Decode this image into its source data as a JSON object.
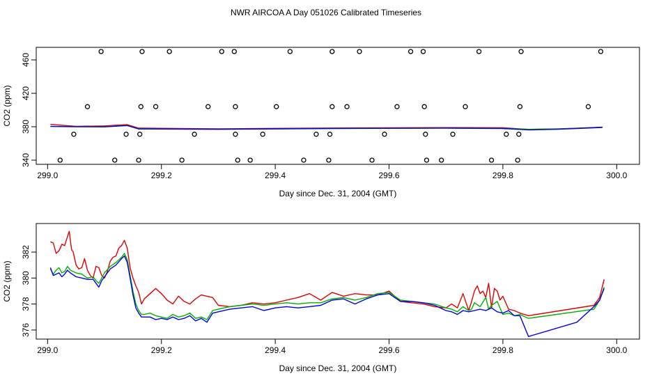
{
  "title": "NWR AIRCOA A  Day 051026  Calibrated Timeseries",
  "colors": {
    "red": "#e00000",
    "green": "#00b000",
    "blue": "#0000e0",
    "marker": "#000000"
  },
  "chart_data": [
    {
      "type": "scatter",
      "xlabel": "Day since Dec. 31, 2004 (GMT)",
      "ylabel": "CO2 (ppm)",
      "xlim": [
        298.98,
        300.04
      ],
      "ylim": [
        335,
        475
      ],
      "xticks": [
        299.0,
        299.2,
        299.4,
        299.6,
        299.8,
        300.0
      ],
      "xtick_labels": [
        "299.0",
        "299.2",
        "299.4",
        "299.6",
        "299.8",
        "300.0"
      ],
      "yticks": [
        340,
        380,
        420,
        460
      ],
      "ytick_labels": [
        "340",
        "380",
        "420",
        "460"
      ],
      "markers": [
        {
          "x": 299.094,
          "y": 470
        },
        {
          "x": 299.166,
          "y": 470
        },
        {
          "x": 299.214,
          "y": 470
        },
        {
          "x": 299.306,
          "y": 470
        },
        {
          "x": 299.328,
          "y": 470
        },
        {
          "x": 299.426,
          "y": 470
        },
        {
          "x": 299.5,
          "y": 470
        },
        {
          "x": 299.548,
          "y": 470
        },
        {
          "x": 299.638,
          "y": 470
        },
        {
          "x": 299.66,
          "y": 470
        },
        {
          "x": 299.758,
          "y": 470
        },
        {
          "x": 299.832,
          "y": 470
        },
        {
          "x": 299.972,
          "y": 470
        },
        {
          "x": 299.07,
          "y": 404
        },
        {
          "x": 299.164,
          "y": 404
        },
        {
          "x": 299.19,
          "y": 404
        },
        {
          "x": 299.282,
          "y": 404
        },
        {
          "x": 299.33,
          "y": 404
        },
        {
          "x": 299.402,
          "y": 404
        },
        {
          "x": 299.5,
          "y": 404
        },
        {
          "x": 299.526,
          "y": 404
        },
        {
          "x": 299.614,
          "y": 404
        },
        {
          "x": 299.662,
          "y": 404
        },
        {
          "x": 299.734,
          "y": 404
        },
        {
          "x": 299.83,
          "y": 404
        },
        {
          "x": 299.95,
          "y": 404
        },
        {
          "x": 299.046,
          "y": 371
        },
        {
          "x": 299.138,
          "y": 371
        },
        {
          "x": 299.162,
          "y": 371
        },
        {
          "x": 299.258,
          "y": 371
        },
        {
          "x": 299.33,
          "y": 371
        },
        {
          "x": 299.378,
          "y": 371
        },
        {
          "x": 299.472,
          "y": 371
        },
        {
          "x": 299.496,
          "y": 371
        },
        {
          "x": 299.592,
          "y": 371
        },
        {
          "x": 299.664,
          "y": 371
        },
        {
          "x": 299.712,
          "y": 371
        },
        {
          "x": 299.806,
          "y": 371
        },
        {
          "x": 299.828,
          "y": 371
        },
        {
          "x": 299.022,
          "y": 340
        },
        {
          "x": 299.118,
          "y": 340
        },
        {
          "x": 299.16,
          "y": 340
        },
        {
          "x": 299.236,
          "y": 340
        },
        {
          "x": 299.334,
          "y": 340
        },
        {
          "x": 299.356,
          "y": 340
        },
        {
          "x": 299.45,
          "y": 340
        },
        {
          "x": 299.494,
          "y": 340
        },
        {
          "x": 299.57,
          "y": 340
        },
        {
          "x": 299.666,
          "y": 340
        },
        {
          "x": 299.692,
          "y": 340
        },
        {
          "x": 299.78,
          "y": 340
        },
        {
          "x": 299.826,
          "y": 340
        }
      ],
      "series": [
        {
          "name": "red",
          "color": "#e00000",
          "x": [
            299.005,
            299.05,
            299.1,
            299.14,
            299.16,
            299.3,
            299.5,
            299.7,
            299.8,
            299.845,
            299.9,
            299.975
          ],
          "y": [
            382.8,
            380.5,
            381.0,
            382.5,
            378.3,
            377.5,
            378.5,
            379.0,
            378.8,
            376.8,
            377.5,
            379.5
          ]
        },
        {
          "name": "green",
          "color": "#00b000",
          "x": [
            299.005,
            299.05,
            299.1,
            299.14,
            299.16,
            299.3,
            299.5,
            299.7,
            299.8,
            299.845,
            299.9,
            299.975
          ],
          "y": [
            380.5,
            380.2,
            380.0,
            381.5,
            377.5,
            377.0,
            378.0,
            378.5,
            378.2,
            376.9,
            377.4,
            379.3
          ]
        },
        {
          "name": "blue",
          "color": "#0000e0",
          "x": [
            299.005,
            299.05,
            299.1,
            299.14,
            299.16,
            299.3,
            299.5,
            299.7,
            299.8,
            299.845,
            299.9,
            299.975
          ],
          "y": [
            380.3,
            380.0,
            379.8,
            381.4,
            377.3,
            376.9,
            377.8,
            378.3,
            377.9,
            376.2,
            377.0,
            379.2
          ]
        }
      ]
    },
    {
      "type": "line",
      "xlabel": "Day since Dec. 31, 2004 (GMT)",
      "ylabel": "CO2 (ppm)",
      "xlim": [
        298.98,
        300.04
      ],
      "ylim": [
        375.3,
        384.2
      ],
      "xticks": [
        299.0,
        299.2,
        299.4,
        299.6,
        299.8,
        300.0
      ],
      "xtick_labels": [
        "299.0",
        "299.2",
        "299.4",
        "299.6",
        "299.8",
        "300.0"
      ],
      "yticks": [
        376,
        378,
        380,
        382
      ],
      "ytick_labels": [
        "376",
        "378",
        "380",
        "382"
      ],
      "series": [
        {
          "name": "red",
          "color": "#e00000",
          "x": [
            299.005,
            299.01,
            299.015,
            299.02,
            299.025,
            299.03,
            299.035,
            299.038,
            299.042,
            299.045,
            299.05,
            299.055,
            299.06,
            299.065,
            299.07,
            299.075,
            299.08,
            299.085,
            299.09,
            299.095,
            299.1,
            299.105,
            299.11,
            299.115,
            299.12,
            299.125,
            299.13,
            299.135,
            299.14,
            299.145,
            299.15,
            299.155,
            299.16,
            299.165,
            299.17,
            299.18,
            299.19,
            299.2,
            299.21,
            299.22,
            299.23,
            299.24,
            299.25,
            299.26,
            299.27,
            299.28,
            299.29,
            299.3,
            299.32,
            299.34,
            299.36,
            299.38,
            299.4,
            299.42,
            299.44,
            299.46,
            299.48,
            299.5,
            299.52,
            299.54,
            299.56,
            299.58,
            299.6,
            299.62,
            299.64,
            299.66,
            299.68,
            299.7,
            299.71,
            299.72,
            299.73,
            299.74,
            299.745,
            299.75,
            299.755,
            299.76,
            299.765,
            299.77,
            299.775,
            299.78,
            299.785,
            299.79,
            299.795,
            299.8,
            299.81,
            299.82,
            299.83,
            299.845,
            299.96,
            299.97,
            299.978
          ],
          "y": [
            382.8,
            382.7,
            381.9,
            382.1,
            382.6,
            382.5,
            383.2,
            383.6,
            382.2,
            382.0,
            381.0,
            380.7,
            380.8,
            381.5,
            380.6,
            380.2,
            380.0,
            380.9,
            380.8,
            380.2,
            380.0,
            380.5,
            381.3,
            381.6,
            381.7,
            382.3,
            382.5,
            382.9,
            382.3,
            380.8,
            380.0,
            379.4,
            378.9,
            378.0,
            378.4,
            378.8,
            379.2,
            378.8,
            378.3,
            378.0,
            378.6,
            378.2,
            378.0,
            378.4,
            378.7,
            378.6,
            378.5,
            377.9,
            377.8,
            377.9,
            378.1,
            378.0,
            378.1,
            378.3,
            378.5,
            378.8,
            378.3,
            378.9,
            378.6,
            378.8,
            378.7,
            378.7,
            379.0,
            378.2,
            378.1,
            378.0,
            377.8,
            377.7,
            378.0,
            377.7,
            378.8,
            377.5,
            378.2,
            379.0,
            379.4,
            378.8,
            379.0,
            378.5,
            379.6,
            377.7,
            379.2,
            379.0,
            378.3,
            378.6,
            377.6,
            377.5,
            377.3,
            377.1,
            377.9,
            378.5,
            379.9
          ]
        },
        {
          "name": "green",
          "color": "#00b000",
          "x": [
            299.005,
            299.01,
            299.015,
            299.02,
            299.025,
            299.03,
            299.035,
            299.04,
            299.05,
            299.06,
            299.07,
            299.08,
            299.085,
            299.09,
            299.095,
            299.1,
            299.11,
            299.12,
            299.13,
            299.135,
            299.14,
            299.145,
            299.15,
            299.155,
            299.16,
            299.165,
            299.17,
            299.18,
            299.19,
            299.2,
            299.21,
            299.22,
            299.23,
            299.24,
            299.25,
            299.26,
            299.27,
            299.28,
            299.29,
            299.3,
            299.32,
            299.34,
            299.36,
            299.38,
            299.4,
            299.42,
            299.44,
            299.46,
            299.48,
            299.5,
            299.52,
            299.54,
            299.56,
            299.58,
            299.6,
            299.62,
            299.64,
            299.66,
            299.68,
            299.7,
            299.71,
            299.72,
            299.73,
            299.74,
            299.745,
            299.75,
            299.76,
            299.77,
            299.775,
            299.78,
            299.79,
            299.8,
            299.81,
            299.82,
            299.83,
            299.845,
            299.96,
            299.97,
            299.978
          ],
          "y": [
            380.7,
            380.3,
            380.6,
            380.8,
            380.4,
            380.5,
            380.9,
            380.6,
            380.4,
            380.3,
            380.0,
            380.1,
            379.8,
            379.6,
            380.0,
            380.4,
            380.9,
            381.2,
            381.6,
            381.9,
            381.4,
            380.2,
            379.0,
            378.0,
            377.5,
            377.2,
            377.2,
            377.3,
            377.1,
            377.0,
            376.9,
            377.2,
            377.0,
            377.1,
            377.3,
            376.9,
            377.0,
            376.8,
            377.5,
            377.6,
            377.8,
            377.9,
            378.0,
            377.9,
            378.0,
            378.1,
            378.0,
            378.1,
            378.1,
            378.4,
            378.5,
            378.3,
            378.5,
            378.8,
            378.9,
            378.3,
            378.2,
            378.1,
            378.0,
            377.7,
            377.6,
            377.4,
            377.8,
            377.5,
            377.6,
            378.1,
            377.8,
            378.5,
            377.6,
            377.9,
            378.2,
            377.2,
            377.3,
            377.1,
            377.2,
            376.9,
            377.6,
            378.3,
            379.3
          ]
        },
        {
          "name": "blue",
          "color": "#0000e0",
          "x": [
            299.005,
            299.01,
            299.015,
            299.02,
            299.025,
            299.03,
            299.035,
            299.04,
            299.05,
            299.06,
            299.07,
            299.08,
            299.085,
            299.09,
            299.095,
            299.1,
            299.11,
            299.12,
            299.13,
            299.135,
            299.14,
            299.145,
            299.15,
            299.155,
            299.16,
            299.165,
            299.17,
            299.18,
            299.19,
            299.2,
            299.21,
            299.22,
            299.23,
            299.24,
            299.25,
            299.26,
            299.27,
            299.28,
            299.29,
            299.3,
            299.32,
            299.34,
            299.36,
            299.38,
            299.4,
            299.42,
            299.44,
            299.46,
            299.48,
            299.5,
            299.52,
            299.54,
            299.56,
            299.58,
            299.6,
            299.62,
            299.64,
            299.66,
            299.68,
            299.7,
            299.71,
            299.72,
            299.73,
            299.74,
            299.75,
            299.76,
            299.77,
            299.78,
            299.79,
            299.8,
            299.81,
            299.82,
            299.83,
            299.845,
            299.93,
            299.96,
            299.97,
            299.978
          ],
          "y": [
            380.8,
            380.2,
            380.3,
            380.4,
            380.1,
            380.3,
            380.6,
            380.4,
            380.1,
            380.0,
            379.9,
            379.9,
            379.6,
            379.3,
            379.8,
            380.1,
            380.7,
            381.0,
            381.5,
            381.7,
            381.2,
            380.0,
            378.7,
            377.7,
            377.3,
            377.0,
            377.0,
            377.0,
            376.8,
            376.9,
            376.8,
            377.0,
            376.8,
            376.9,
            377.1,
            376.7,
            376.9,
            376.6,
            377.3,
            377.4,
            377.6,
            377.7,
            377.8,
            377.5,
            377.7,
            377.8,
            377.7,
            377.8,
            377.9,
            378.3,
            378.4,
            378.0,
            378.4,
            378.7,
            378.8,
            378.2,
            378.2,
            378.1,
            377.9,
            377.5,
            377.4,
            377.2,
            377.5,
            377.4,
            377.5,
            377.6,
            377.5,
            377.7,
            377.4,
            377.3,
            377.5,
            377.1,
            377.1,
            375.5,
            376.6,
            377.8,
            378.3,
            379.2
          ]
        }
      ]
    }
  ]
}
